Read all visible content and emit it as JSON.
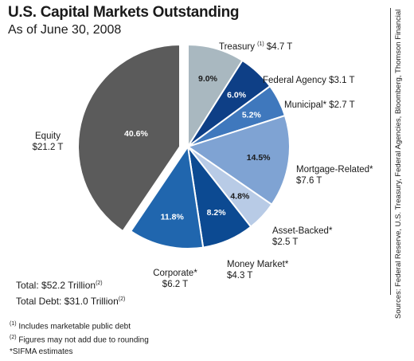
{
  "header": {
    "title": "U.S. Capital Markets Outstanding",
    "subtitle": "As of June 30, 2008"
  },
  "chart_data": {
    "type": "pie",
    "title": "U.S. Capital Markets Outstanding",
    "subtitle": "As of June 30, 2008",
    "slices": [
      {
        "name": "Treasury",
        "sup": "(1)",
        "value_label": "$4.7 T",
        "value": 4.7,
        "percent": 9.0,
        "percent_label": "9.0%",
        "color": "#a9b8c0"
      },
      {
        "name": "Federal Agency",
        "sup": "",
        "value_label": "$3.1 T",
        "value": 3.1,
        "percent": 6.0,
        "percent_label": "6.0%",
        "color": "#0e3f86"
      },
      {
        "name": "Municipal*",
        "sup": "",
        "value_label": "$2.7 T",
        "value": 2.7,
        "percent": 5.2,
        "percent_label": "5.2%",
        "color": "#3f78bd"
      },
      {
        "name": "Mortgage-Related*",
        "sup": "",
        "value_label": "$7.6 T",
        "value": 7.6,
        "percent": 14.5,
        "percent_label": "14.5%",
        "color": "#7fa3d3"
      },
      {
        "name": "Asset-Backed*",
        "sup": "",
        "value_label": "$2.5 T",
        "value": 2.5,
        "percent": 4.8,
        "percent_label": "4.8%",
        "color": "#b8cbe6"
      },
      {
        "name": "Money Market*",
        "sup": "",
        "value_label": "$4.3 T",
        "value": 4.3,
        "percent": 8.2,
        "percent_label": "8.2%",
        "color": "#0c4a92"
      },
      {
        "name": "Corporate*",
        "sup": "",
        "value_label": "$6.2 T",
        "value": 6.2,
        "percent": 11.8,
        "percent_label": "11.8%",
        "color": "#2066ae"
      },
      {
        "name": "Equity",
        "sup": "",
        "value_label": "$21.2 T",
        "value": 21.2,
        "percent": 40.6,
        "percent_label": "40.6%",
        "color": "#5b5b5b"
      }
    ]
  },
  "totals": {
    "total_label": "Total: $52.2 Trillion",
    "total_sup": "(2)",
    "debt_label": "Total Debt: $31.0 Trillion",
    "debt_sup": "(2)"
  },
  "notes": {
    "note1_sup": "(1)",
    "note1": " Includes marketable public debt",
    "note2_sup": "(2)",
    "note2": " Figures may not add due to rounding",
    "note3": "*SIFMA estimates"
  },
  "source": "Sources: Federal Reserve, U.S. Treasury, Federal Agencies, Bloomberg, Thomson Financial"
}
